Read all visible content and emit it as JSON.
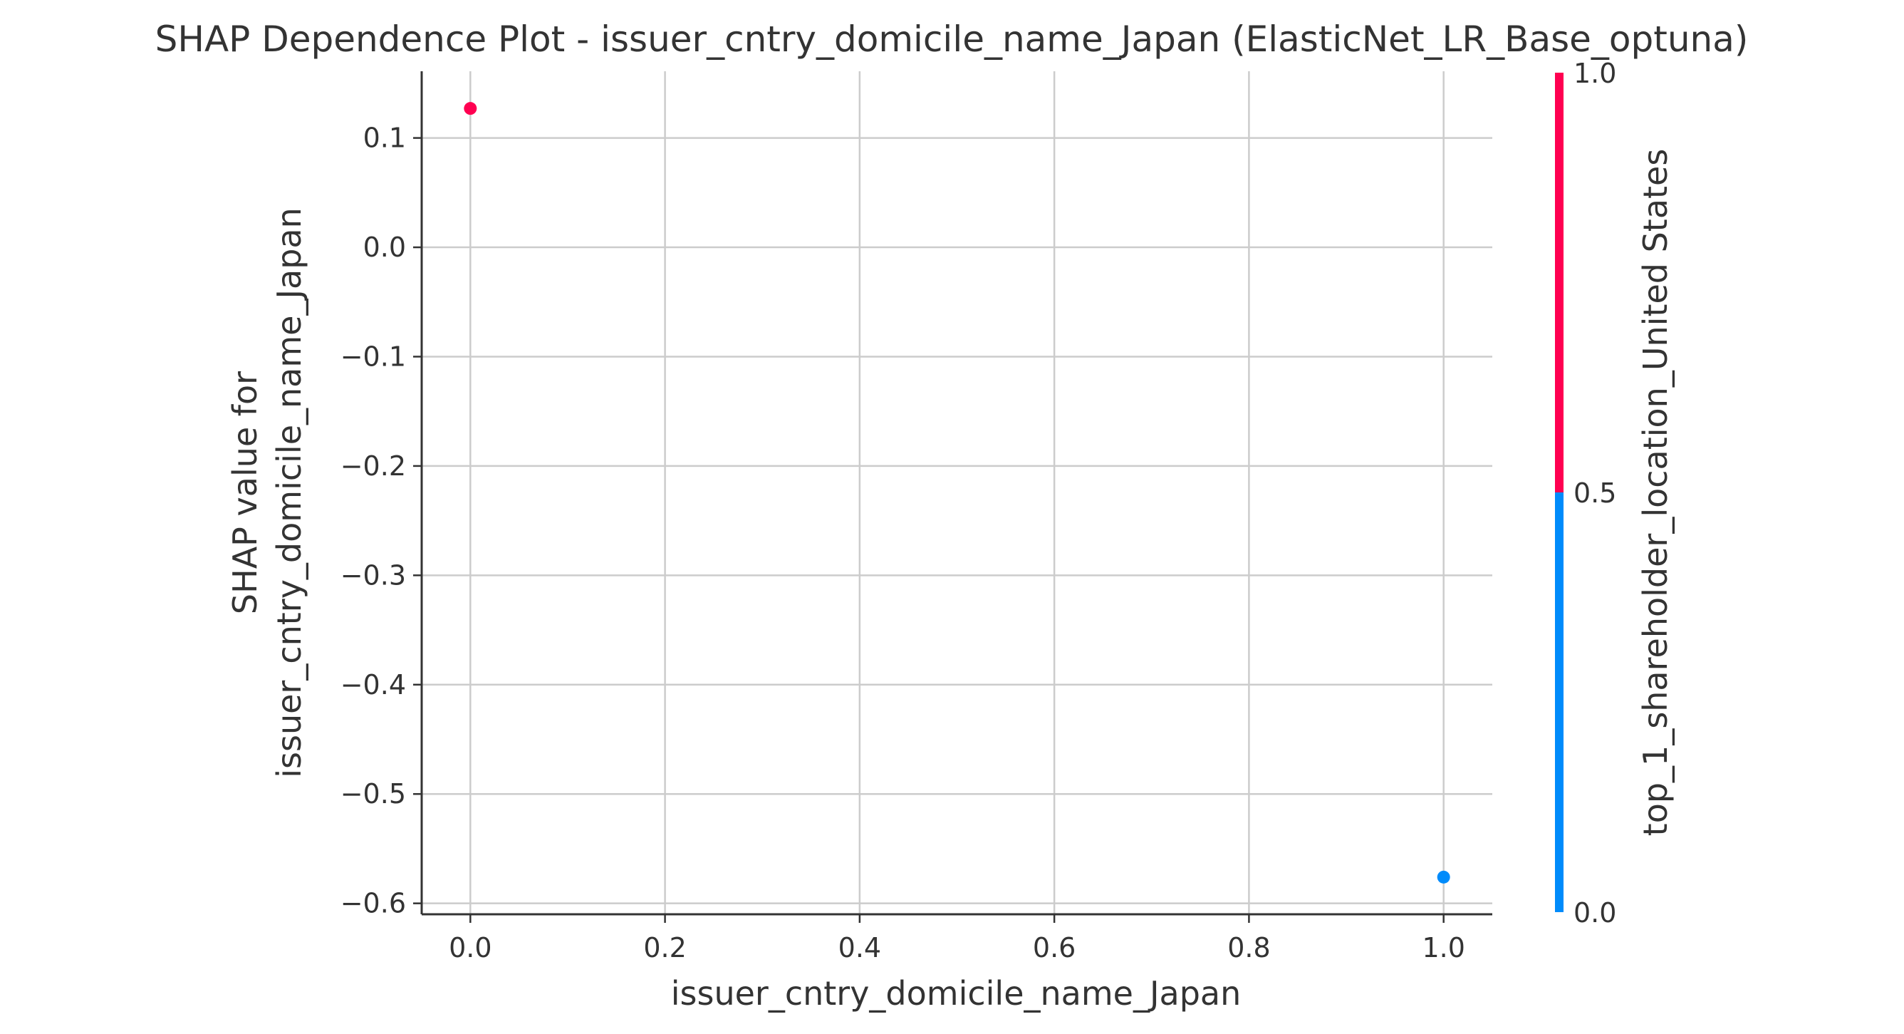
{
  "chart_data": {
    "type": "scatter",
    "title": "SHAP Dependence Plot - issuer_cntry_domicile_name_Japan (ElasticNet_LR_Base_optuna)",
    "xlabel": "issuer_cntry_domicile_name_Japan",
    "ylabel_lines": [
      "SHAP value for",
      "issuer_cntry_domicile_name_Japan"
    ],
    "xlim": [
      -0.05,
      1.05
    ],
    "ylim": [
      -0.61,
      0.161
    ],
    "xticks": [
      0.0,
      0.2,
      0.4,
      0.6,
      0.8,
      1.0
    ],
    "xtick_labels": [
      "0.0",
      "0.2",
      "0.4",
      "0.6",
      "0.8",
      "1.0"
    ],
    "yticks": [
      0.1,
      0.0,
      -0.1,
      -0.2,
      -0.3,
      -0.4,
      -0.5,
      -0.6
    ],
    "ytick_labels": [
      "0.1",
      "0.0",
      "−0.1",
      "−0.2",
      "−0.3",
      "−0.4",
      "−0.5",
      "−0.6"
    ],
    "grid": true,
    "points": [
      {
        "x": 0.0,
        "y": 0.127,
        "color_value": 1.0
      },
      {
        "x": 1.0,
        "y": -0.576,
        "color_value": 0.0
      }
    ],
    "colorbar": {
      "label": "top_1_shareholder_location_United States",
      "range": [
        0.0,
        1.0
      ],
      "ticks": [
        0.0,
        0.5,
        1.0
      ],
      "tick_labels": [
        "0.0",
        "0.5",
        "1.0"
      ],
      "low_color": "#008bfb",
      "high_color": "#ff0051"
    }
  }
}
